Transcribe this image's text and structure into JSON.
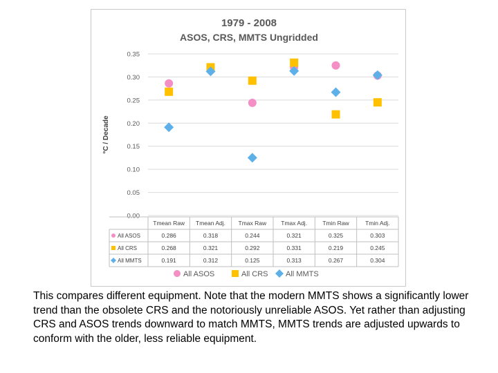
{
  "chart_data": {
    "type": "scatter",
    "title": "1979 - 2008",
    "subtitle": "ASOS, CRS, MMTS Ungridded",
    "ylabel": "°C / Decade",
    "xlabel": "",
    "ylim": [
      0,
      0.35
    ],
    "yticks": [
      "0.35",
      "0.30",
      "0.25",
      "0.20",
      "0.15",
      "0.10",
      "0.05",
      "0.00"
    ],
    "categories": [
      "Tmean Raw",
      "Tmean Adj.",
      "Tmax Raw",
      "Tmax Adj.",
      "Tmin Raw",
      "Tmin Adj."
    ],
    "series": [
      {
        "name": "All ASOS",
        "marker": "circle",
        "color": "#f48fc6",
        "values": [
          0.286,
          0.318,
          0.244,
          0.321,
          0.325,
          0.303
        ],
        "labels": [
          "0.286",
          "0.318",
          "0.244",
          "0.321",
          "0.325",
          "0.303"
        ]
      },
      {
        "name": "All CRS",
        "marker": "square",
        "color": "#ffc000",
        "values": [
          0.268,
          0.321,
          0.292,
          0.331,
          0.219,
          0.245
        ],
        "labels": [
          "0.268",
          "0.321",
          "0.292",
          "0.331",
          "0.219",
          "0.245"
        ]
      },
      {
        "name": "All MMTS",
        "marker": "diamond",
        "color": "#5db0e8",
        "values": [
          0.191,
          0.312,
          0.125,
          0.313,
          0.267,
          0.304
        ],
        "labels": [
          "0.191",
          "0.312",
          "0.125",
          "0.313",
          "0.267",
          "0.304"
        ]
      }
    ],
    "grid": true,
    "legend": "bottom"
  },
  "caption": "This compares different equipment. Note that the modern MMTS shows a significantly lower trend than the obsolete CRS and the notoriously unreliable ASOS. Yet rather than adjusting CRS and ASOS trends downward to match MMTS, MMTS trends are adjusted upwards to conform with the older, less reliable equipment."
}
